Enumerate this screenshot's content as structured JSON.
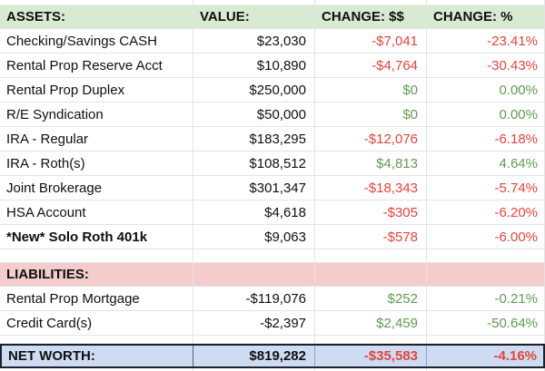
{
  "header": {
    "assets": "ASSETS:",
    "value": "VALUE:",
    "change_dollars": "CHANGE: $$",
    "change_percent": "CHANGE: %"
  },
  "assets": [
    {
      "label": "Checking/Savings CASH",
      "value": "$23,030",
      "change": "-$7,041",
      "percent": "-23.41%",
      "change_color": "red"
    },
    {
      "label": "Rental Prop Reserve Acct",
      "value": "$10,890",
      "change": "-$4,764",
      "percent": "-30.43%",
      "change_color": "red"
    },
    {
      "label": "Rental Prop Duplex",
      "value": "$250,000",
      "change": "$0",
      "percent": "0.00%",
      "change_color": "green"
    },
    {
      "label": "R/E Syndication",
      "value": "$50,000",
      "change": "$0",
      "percent": "0.00%",
      "change_color": "green"
    },
    {
      "label": "IRA - Regular",
      "value": "$183,295",
      "change": "-$12,076",
      "percent": "-6.18%",
      "change_color": "red"
    },
    {
      "label": "IRA - Roth(s)",
      "value": "$108,512",
      "change": "$4,813",
      "percent": "4.64%",
      "change_color": "green"
    },
    {
      "label": "Joint Brokerage",
      "value": "$301,347",
      "change": "-$18,343",
      "percent": "-5.74%",
      "change_color": "red"
    },
    {
      "label": "HSA Account",
      "value": "$4,618",
      "change": "-$305",
      "percent": "-6.20%",
      "change_color": "red"
    },
    {
      "label": "*New* Solo Roth 401k",
      "value": "$9,063",
      "change": "-$578",
      "percent": "-6.00%",
      "change_color": "red"
    }
  ],
  "liabilities_header": "LIABILITIES:",
  "liabilities": [
    {
      "label": "Rental Prop Mortgage",
      "value": "-$119,076",
      "change": "$252",
      "percent": "-0.21%",
      "change_color": "green"
    },
    {
      "label": "Credit Card(s)",
      "value": "-$2,397",
      "change": "$2,459",
      "percent": "-50.64%",
      "change_color": "green"
    }
  ],
  "net_worth": {
    "label": "NET WORTH:",
    "value": "$819,282",
    "change": "-$35,583",
    "percent": "-4.16%",
    "change_color": "red"
  },
  "colors": {
    "red": "#e2453c",
    "green": "#609b50",
    "header_green_bg": "#d9ead3",
    "liabilities_pink_bg": "#f4cccc",
    "networth_blue_bg": "#cddcf2",
    "networth_border": "#1d212b",
    "gridline": "#e2e3e5"
  }
}
